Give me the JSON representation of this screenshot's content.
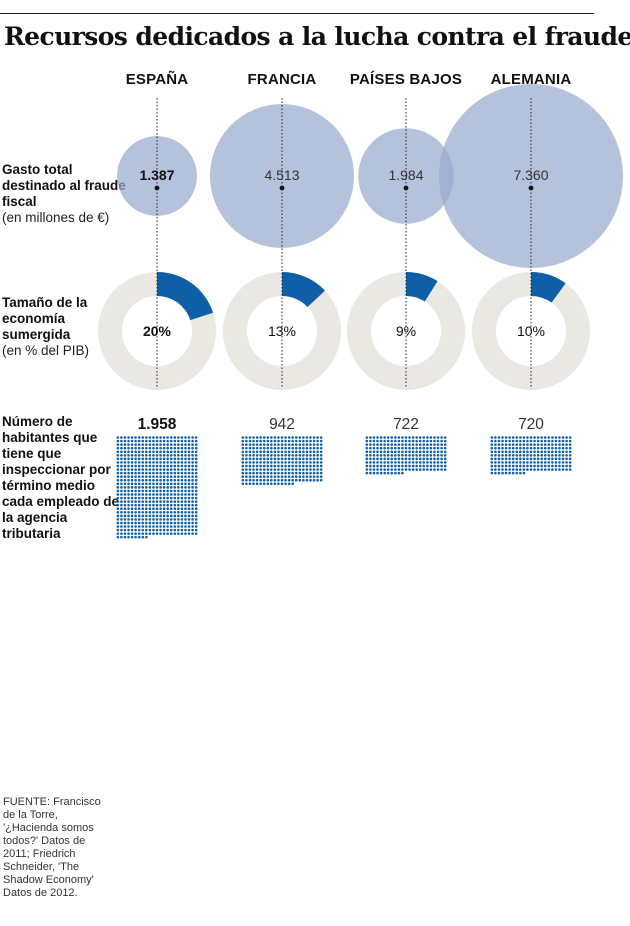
{
  "title": "Recursos dedicados a la lucha contra el fraude",
  "row_labels": {
    "gasto": {
      "bold": "Gasto total destinado al fraude fiscal",
      "unit": "(en millones de €)"
    },
    "economia": {
      "bold": "Tamaño de la economía sumergida",
      "unit": "(en % del PIB)"
    },
    "habitantes": {
      "bold": "Número de habitantes que tiene que inspeccionar por término medio cada empleado de la agencia tributaria"
    }
  },
  "source": "FUENTE: Francisco de la Torre, '¿Hacienda somos todos?' Datos de 2011; Friedrich Schneider, 'The Shadow Economy' Datos de 2012.",
  "colors": {
    "circle_fill": "#98aacd",
    "donut_track": "#e9e8e2",
    "donut_fill": "#0f5fa6",
    "dot": "#0f5fa6",
    "text": "#111111"
  },
  "chart_data": {
    "type": "composite",
    "countries": [
      "ESPAÑA",
      "FRANCIA",
      "PAÍSES BAJOS",
      "ALEMANIA"
    ],
    "highlight": "ESPAÑA",
    "gasto_total": {
      "type": "bubble",
      "values": [
        1387,
        4513,
        1984,
        7360
      ],
      "labels": [
        "1.387",
        "4.513",
        "1.984",
        "7.360"
      ]
    },
    "economia_sumergida": {
      "type": "donut",
      "values": [
        20,
        13,
        9,
        10
      ],
      "labels": [
        "20%",
        "13%",
        "9%",
        "10%"
      ]
    },
    "habitantes_por_empleado": {
      "type": "dot-matrix",
      "values": [
        1958,
        942,
        722,
        720
      ],
      "labels": [
        "1.958",
        "942",
        "722",
        "720"
      ]
    }
  }
}
